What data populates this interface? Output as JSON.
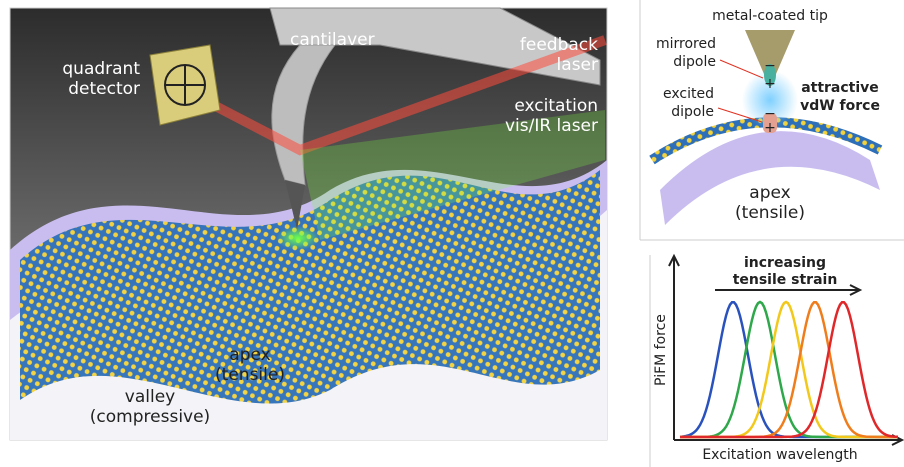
{
  "main_panel": {
    "cantilever": "cantilaver",
    "feedback_laser": [
      "feedback",
      "laser"
    ],
    "quadrant_detector": [
      "quadrant",
      "detector"
    ],
    "excitation_laser": [
      "excitation",
      "vis/IR laser"
    ],
    "apex": [
      "apex",
      "(tensile)"
    ],
    "valley": [
      "valley",
      "(compressive)"
    ]
  },
  "inset": {
    "tip": "metal-coated tip",
    "mirrored_dipole": [
      "mirrored",
      "dipole"
    ],
    "excited_dipole": [
      "excited",
      "dipole"
    ],
    "force": [
      "attractive",
      "vdW force"
    ],
    "apex": [
      "apex",
      "(tensile)"
    ],
    "minus": "−",
    "plus": "+"
  },
  "plot": {
    "arrow_label": [
      "increasing",
      "tensile strain"
    ],
    "y_label": "PiFM force",
    "x_label": "Excitation wavelength"
  }
}
